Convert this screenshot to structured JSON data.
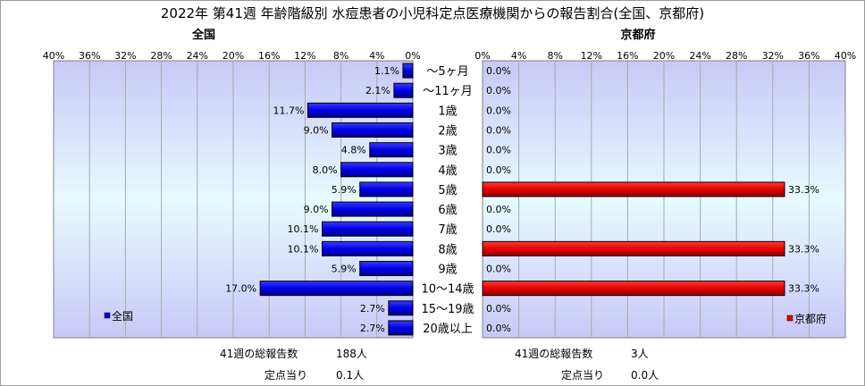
{
  "title": "2022年 第41週 年齢階級別 水痘患者の小児科定点医療機関からの報告割合(全国、京都府)",
  "categories": [
    "～5ヶ月",
    "～11ヶ月",
    "1歳",
    "2歳",
    "3歳",
    "4歳",
    "5歳",
    "6歳",
    "7歳",
    "8歳",
    "9歳",
    "10～14歳",
    "15～19歳",
    "20歳以上"
  ],
  "chart_data": [
    {
      "type": "bar",
      "title": "全国",
      "orientation": "horizontal",
      "direction": "right-to-left",
      "categories": [
        "～5ヶ月",
        "～11ヶ月",
        "1歳",
        "2歳",
        "3歳",
        "4歳",
        "5歳",
        "6歳",
        "7歳",
        "8歳",
        "9歳",
        "10～14歳",
        "15～19歳",
        "20歳以上"
      ],
      "series": [
        {
          "name": "全国",
          "values": [
            1.1,
            2.1,
            11.7,
            9.0,
            4.8,
            8.0,
            5.9,
            9.0,
            10.1,
            10.1,
            5.9,
            17.0,
            2.7,
            2.7
          ]
        }
      ],
      "value_labels": [
        "1.1%",
        "2.1%",
        "11.7%",
        "9.0%",
        "4.8%",
        "8.0%",
        "5.9%",
        "9.0%",
        "10.1%",
        "10.1%",
        "5.9%",
        "17.0%",
        "2.7%",
        "2.7%"
      ],
      "xlim": [
        0,
        40
      ],
      "ticks": [
        "40%",
        "36%",
        "32%",
        "28%",
        "24%",
        "20%",
        "16%",
        "12%",
        "8%",
        "4%",
        "0%"
      ],
      "grid": true,
      "legend": "bottom-left",
      "bar_color": "#0000ff"
    },
    {
      "type": "bar",
      "title": "京都府",
      "orientation": "horizontal",
      "direction": "left-to-right",
      "categories": [
        "～5ヶ月",
        "～11ヶ月",
        "1歳",
        "2歳",
        "3歳",
        "4歳",
        "5歳",
        "6歳",
        "7歳",
        "8歳",
        "9歳",
        "10～14歳",
        "15～19歳",
        "20歳以上"
      ],
      "series": [
        {
          "name": "京都府",
          "values": [
            0.0,
            0.0,
            0.0,
            0.0,
            0.0,
            0.0,
            33.3,
            0.0,
            0.0,
            33.3,
            0.0,
            33.3,
            0.0,
            0.0
          ]
        }
      ],
      "value_labels": [
        "0.0%",
        "0.0%",
        "0.0%",
        "0.0%",
        "0.0%",
        "0.0%",
        "33.3%",
        "0.0%",
        "0.0%",
        "33.3%",
        "0.0%",
        "33.3%",
        "0.0%",
        "0.0%"
      ],
      "xlim": [
        0,
        40
      ],
      "ticks": [
        "0%",
        "4%",
        "8%",
        "12%",
        "16%",
        "20%",
        "24%",
        "28%",
        "32%",
        "36%",
        "40%"
      ],
      "grid": true,
      "legend": "bottom-right",
      "bar_color": "#ff0000"
    }
  ],
  "footer": {
    "national": {
      "total_label": "41週の総報告数",
      "total_value": "188人",
      "per_label": "定点当り",
      "per_value": "0.1人"
    },
    "kyoto": {
      "total_label": "41週の総報告数",
      "total_value": "3人",
      "per_label": "定点当り",
      "per_value": "0.0人"
    }
  }
}
